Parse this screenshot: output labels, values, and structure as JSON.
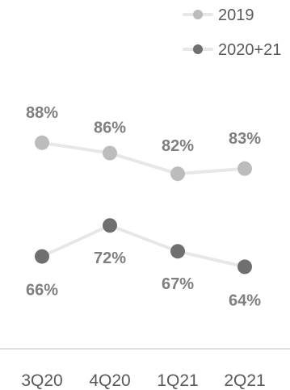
{
  "chart_data": {
    "type": "line",
    "categories": [
      "3Q20",
      "4Q20",
      "1Q21",
      "2Q21"
    ],
    "series": [
      {
        "name": "2019",
        "values": [
          88,
          86,
          82,
          83
        ],
        "labels": [
          "88%",
          "86%",
          "82%",
          "83%"
        ],
        "line_color": "#e7e7e7",
        "marker_color": "#bcbcbc"
      },
      {
        "name": "2020+21",
        "values": [
          66,
          72,
          67,
          64
        ],
        "labels": [
          "66%",
          "72%",
          "67%",
          "64%"
        ],
        "line_color": "#e7e7e7",
        "marker_color": "#6f6f6f"
      }
    ],
    "ylim": [
      50,
      100
    ],
    "grid": false,
    "legend_position": "top-right",
    "label_color": "#7f7f7f",
    "tick_color": "#595959",
    "axis_color": "#d9d9d9"
  }
}
